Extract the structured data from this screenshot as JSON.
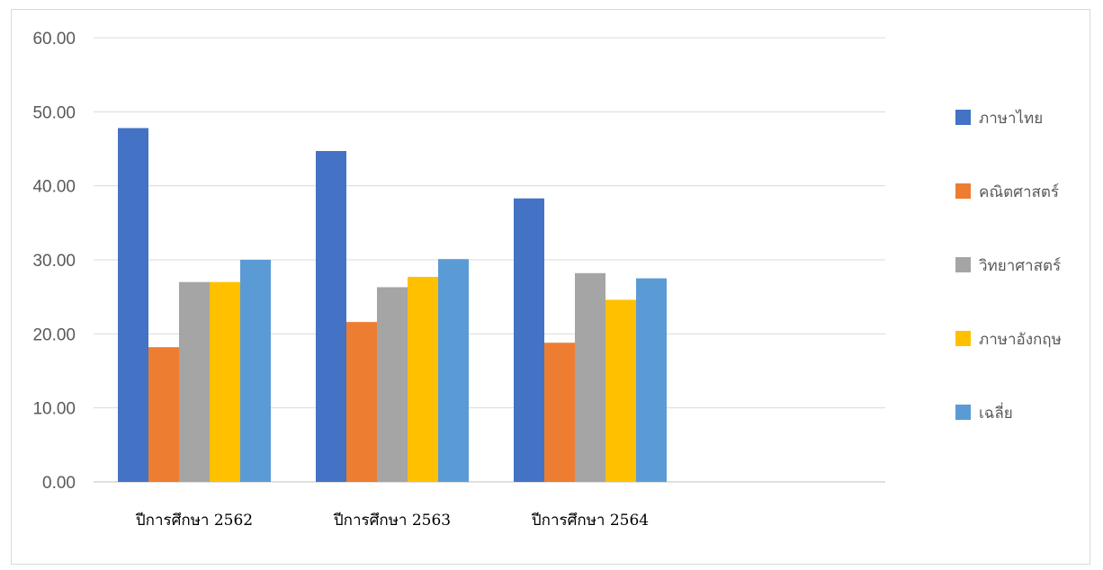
{
  "chart_data": {
    "type": "bar",
    "categories": [
      "ปีการศึกษา 2562",
      "ปีการศึกษา 2563",
      "ปีการศึกษา 2564"
    ],
    "series": [
      {
        "name": "ภาษาไทย",
        "color": "#4472C4",
        "values": [
          47.8,
          44.7,
          38.3
        ]
      },
      {
        "name": "คณิตศาสตร์",
        "color": "#ED7D31",
        "values": [
          18.2,
          21.6,
          18.8
        ]
      },
      {
        "name": "วิทยาศาสตร์",
        "color": "#A5A5A5",
        "values": [
          27.0,
          26.3,
          28.2
        ]
      },
      {
        "name": "ภาษาอังกฤษ",
        "color": "#FFC000",
        "values": [
          27.0,
          27.7,
          24.6
        ]
      },
      {
        "name": "เฉลี่ย",
        "color": "#5B9BD5",
        "values": [
          30.0,
          30.1,
          27.5
        ]
      }
    ],
    "yticks": [
      "0.00",
      "10.00",
      "20.00",
      "30.00",
      "40.00",
      "50.00",
      "60.00"
    ],
    "ylim": [
      0,
      60
    ],
    "grid": true,
    "legend": "right"
  }
}
